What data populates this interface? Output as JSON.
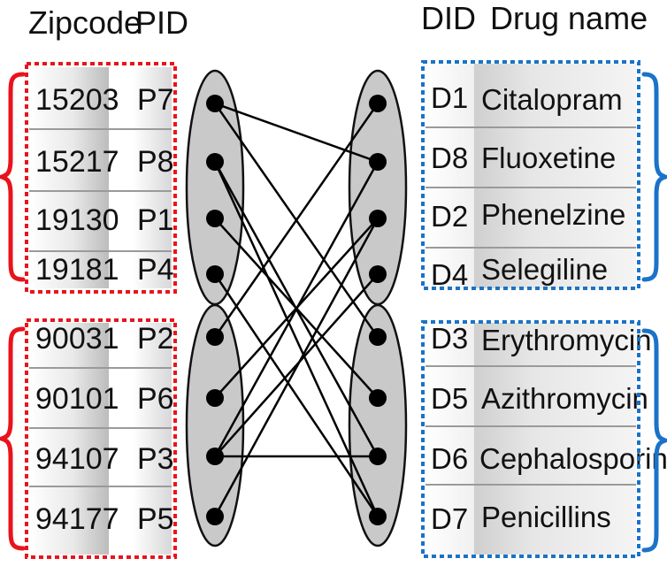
{
  "headers": {
    "zipcode": "Zipcode",
    "pid": "PID",
    "did": "DID",
    "drug_name": "Drug name"
  },
  "patient_groups": [
    {
      "rows": [
        {
          "zipcode": "15203",
          "pid": "P7"
        },
        {
          "zipcode": "15217",
          "pid": "P8"
        },
        {
          "zipcode": "19130",
          "pid": "P1"
        },
        {
          "zipcode": "19181",
          "pid": "P4"
        }
      ]
    },
    {
      "rows": [
        {
          "zipcode": "90031",
          "pid": "P2"
        },
        {
          "zipcode": "90101",
          "pid": "P6"
        },
        {
          "zipcode": "94107",
          "pid": "P3"
        },
        {
          "zipcode": "94177",
          "pid": "P5"
        }
      ]
    }
  ],
  "drug_groups": [
    {
      "rows": [
        {
          "did": "D1",
          "name": "Citalopram"
        },
        {
          "did": "D8",
          "name": "Fluoxetine"
        },
        {
          "did": "D2",
          "name": "Phenelzine"
        },
        {
          "did": "D4",
          "name": "Selegiline"
        }
      ]
    },
    {
      "rows": [
        {
          "did": "D3",
          "name": "Erythromycin"
        },
        {
          "did": "D5",
          "name": "Azithromycin"
        },
        {
          "did": "D6",
          "name": "Cephalosporin"
        },
        {
          "did": "D7",
          "name": "Penicillins"
        }
      ]
    }
  ],
  "edges": [
    [
      0,
      1
    ],
    [
      0,
      4
    ],
    [
      1,
      6
    ],
    [
      1,
      7
    ],
    [
      2,
      5
    ],
    [
      3,
      7
    ],
    [
      4,
      0
    ],
    [
      5,
      2
    ],
    [
      6,
      1
    ],
    [
      6,
      3
    ],
    [
      7,
      2
    ],
    [
      6,
      6
    ]
  ],
  "colors": {
    "patient_border": "#e8141c",
    "drug_border": "#1a73c8",
    "node_fill": "#c9c9c9",
    "dot": "#000000"
  }
}
